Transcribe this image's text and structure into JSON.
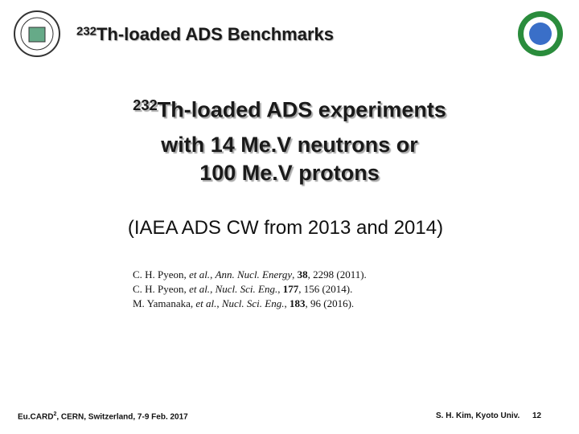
{
  "header": {
    "title_superscript": "232",
    "title": "Th-loaded ADS Benchmarks"
  },
  "heading": {
    "superscript": "232",
    "lines": [
      "Th-loaded ADS experiments",
      "with 14 Me.V neutrons or",
      "100 Me.V protons"
    ]
  },
  "subheading": "(IAEA ADS CW from 2013 and 2014)",
  "references": [
    [
      {
        "text": "C. H. Pyeon, ",
        "style": "normal"
      },
      {
        "text": "et al.",
        "style": "italic"
      },
      {
        "text": ", ",
        "style": "normal"
      },
      {
        "text": "Ann. Nucl. Energy",
        "style": "italic"
      },
      {
        "text": ", ",
        "style": "normal"
      },
      {
        "text": "38",
        "style": "bold"
      },
      {
        "text": ", 2298 (2011).",
        "style": "normal"
      }
    ],
    [
      {
        "text": "C. H. Pyeon, ",
        "style": "normal"
      },
      {
        "text": "et al.",
        "style": "italic"
      },
      {
        "text": ", ",
        "style": "normal"
      },
      {
        "text": "Nucl. Sci. Eng.",
        "style": "italic"
      },
      {
        "text": ", ",
        "style": "normal"
      },
      {
        "text": "177",
        "style": "bold"
      },
      {
        "text": ", 156 (2014).",
        "style": "normal"
      }
    ],
    [
      {
        "text": "M. Yamanaka, ",
        "style": "normal"
      },
      {
        "text": "et al.",
        "style": "italic"
      },
      {
        "text": ", ",
        "style": "normal"
      },
      {
        "text": "Nucl. Sci. Eng.",
        "style": "italic"
      },
      {
        "text": ", ",
        "style": "normal"
      },
      {
        "text": "183",
        "style": "bold"
      },
      {
        "text": ", 96 (2016).",
        "style": "normal"
      }
    ]
  ],
  "footer": {
    "left": "Eu.CARD",
    "left_superscript": "2",
    "left_rest": ", CERN, Switzerland, 7-9 Feb. 2017",
    "author": "S. H. Kim, Kyoto Univ.",
    "page": "12"
  }
}
